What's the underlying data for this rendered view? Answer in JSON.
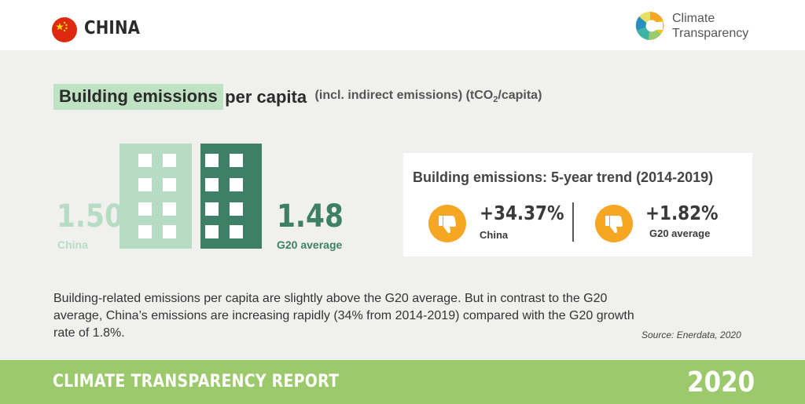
{
  "header": {
    "country": "CHINA",
    "flag_icon": "china-flag-icon",
    "logo_line1": "Climate",
    "logo_line2": "Transparency"
  },
  "title": {
    "highlight": "Building emissions",
    "rest": "per capita",
    "subtitle_pre": "(incl. indirect emissions) (tCO",
    "subtitle_sub": "2",
    "subtitle_post": "/capita)"
  },
  "comparison": {
    "china_value": "1.50",
    "china_label": "China",
    "g20_value": "1.48",
    "g20_label": "G20 average"
  },
  "trend": {
    "title": "Building emissions: 5-year trend (2014-2019)",
    "china_value": "+34.37%",
    "china_label": "China",
    "g20_value": "+1.82%",
    "g20_label": "G20 average",
    "icon": "thumbs-down-icon"
  },
  "description": "Building-related emissions per capita are slightly above the G20 average. But in contrast to the G20 average, China’s emissions are increasing rapidly (34% from 2014-2019) compared with the G20 growth rate of 1.8%.",
  "source": "Source: Enerdata, 2020",
  "footer": {
    "report": "CLIMATE TRANSPARENCY REPORT",
    "year": "2020"
  },
  "colors": {
    "highlight": "#bfe2c3",
    "china": "#b7dcc4",
    "g20": "#3e7f67",
    "thumb": "#f5a623",
    "footer": "#9bc96b"
  }
}
